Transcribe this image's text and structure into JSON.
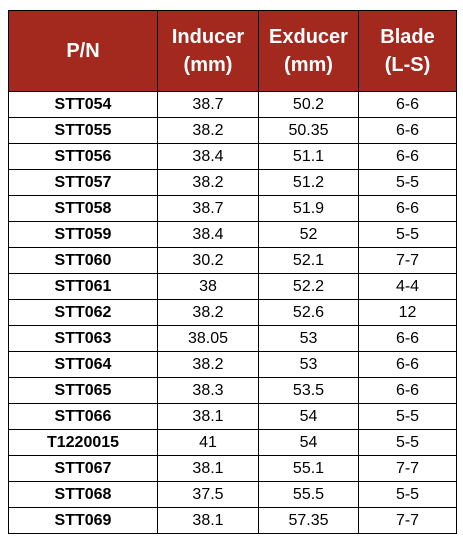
{
  "table": {
    "header": [
      [
        "P/N"
      ],
      [
        "Inducer",
        "(mm)"
      ],
      [
        "Exducer",
        "(mm)"
      ],
      [
        "Blade",
        "(L-S)"
      ]
    ],
    "rows": [
      [
        "STT054",
        "38.7",
        "50.2",
        "6-6"
      ],
      [
        "STT055",
        "38.2",
        "50.35",
        "6-6"
      ],
      [
        "STT056",
        "38.4",
        "51.1",
        "6-6"
      ],
      [
        "STT057",
        "38.2",
        "51.2",
        "5-5"
      ],
      [
        "STT058",
        "38.7",
        "51.9",
        "6-6"
      ],
      [
        "STT059",
        "38.4",
        "52",
        "5-5"
      ],
      [
        "STT060",
        "30.2",
        "52.1",
        "7-7"
      ],
      [
        "STT061",
        "38",
        "52.2",
        "4-4"
      ],
      [
        "STT062",
        "38.2",
        "52.6",
        "12"
      ],
      [
        "STT063",
        "38.05",
        "53",
        "6-6"
      ],
      [
        "STT064",
        "38.2",
        "53",
        "6-6"
      ],
      [
        "STT065",
        "38.3",
        "53.5",
        "6-6"
      ],
      [
        "STT066",
        "38.1",
        "54",
        "5-5"
      ],
      [
        "T1220015",
        "41",
        "54",
        "5-5"
      ],
      [
        "STT067",
        "38.1",
        "55.1",
        "7-7"
      ],
      [
        "STT068",
        "37.5",
        "55.5",
        "5-5"
      ],
      [
        "STT069",
        "38.1",
        "57.35",
        "7-7"
      ]
    ]
  }
}
